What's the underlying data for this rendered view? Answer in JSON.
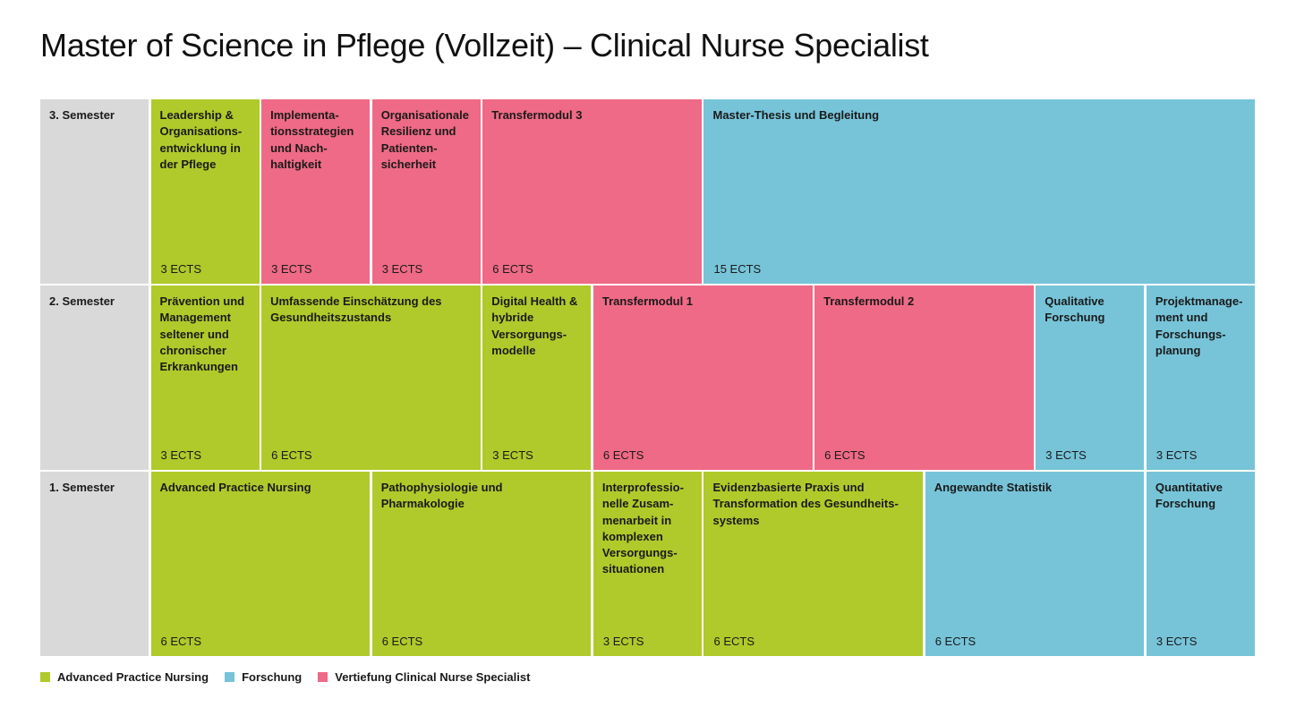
{
  "title": "Master of Science in Pflege (Vollzeit) – Clinical Nurse Specialist",
  "colors": {
    "apn": "#afca2a",
    "fo": "#77c4d9",
    "cns": "#ef6a86",
    "semester": "#d9d9d9"
  },
  "rows": [
    {
      "semester": "3. Semester",
      "modules": [
        {
          "name": "Leadership &\nOrganisations-\nentwicklung in\nder Pflege",
          "ects": "3 ECTS",
          "span": 1,
          "cat": "apn"
        },
        {
          "name": "Implementa-\ntionsstrategien\nund Nach-\nhaltigkeit",
          "ects": "3 ECTS",
          "span": 1,
          "cat": "cns"
        },
        {
          "name": "Organisationale\nResilienz und\nPatienten-\nsicherheit",
          "ects": "3 ECTS",
          "span": 1,
          "cat": "cns"
        },
        {
          "name": "Transfermodul 3",
          "ects": "6 ECTS",
          "span": 2,
          "cat": "cns"
        },
        {
          "name": "Master-Thesis und Begleitung",
          "ects": "15 ECTS",
          "span": 5,
          "cat": "fo"
        }
      ]
    },
    {
      "semester": "2. Semester",
      "modules": [
        {
          "name": "Prävention und\nManagement\nseltener und\nchronischer\nErkrankungen",
          "ects": "3 ECTS",
          "span": 1,
          "cat": "apn"
        },
        {
          "name": "Umfassende Einschätzung des\nGesundheitszustands",
          "ects": "6 ECTS",
          "span": 2,
          "cat": "apn"
        },
        {
          "name": "Digital Health &\nhybride\nVersorgungs-\nmodelle",
          "ects": "3 ECTS",
          "span": 1,
          "cat": "apn"
        },
        {
          "name": "Transfermodul 1",
          "ects": "6 ECTS",
          "span": 2,
          "cat": "cns"
        },
        {
          "name": "Transfermodul 2",
          "ects": "6 ECTS",
          "span": 2,
          "cat": "cns"
        },
        {
          "name": "Qualitative\nForschung",
          "ects": "3 ECTS",
          "span": 1,
          "cat": "fo"
        },
        {
          "name": "Projektmanage-\nment und\nForschungs-\nplanung",
          "ects": "3 ECTS",
          "span": 1,
          "cat": "fo"
        }
      ]
    },
    {
      "semester": "1. Semester",
      "modules": [
        {
          "name": "Advanced Practice Nursing",
          "ects": "6 ECTS",
          "span": 2,
          "cat": "apn"
        },
        {
          "name": "Pathophysiologie und\nPharmakologie",
          "ects": "6 ECTS",
          "span": 2,
          "cat": "apn"
        },
        {
          "name": "Interprofessio-\nnelle Zusam-\nmenarbeit in\nkomplexen\nVersorgungs-\nsituationen",
          "ects": "3 ECTS",
          "span": 1,
          "cat": "apn"
        },
        {
          "name": "Evidenzbasierte Praxis und\nTransformation des Gesundheits-\nsystems",
          "ects": "6 ECTS",
          "span": 2,
          "cat": "apn"
        },
        {
          "name": "Angewandte Statistik",
          "ects": "6 ECTS",
          "span": 2,
          "cat": "fo"
        },
        {
          "name": "Quantitative\nForschung",
          "ects": "3 ECTS",
          "span": 1,
          "cat": "fo"
        }
      ]
    }
  ],
  "legend": [
    {
      "label": "Advanced Practice Nursing",
      "cat": "apn"
    },
    {
      "label": "Forschung",
      "cat": "fo"
    },
    {
      "label": "Vertiefung Clinical Nurse Specialist",
      "cat": "cns"
    }
  ]
}
